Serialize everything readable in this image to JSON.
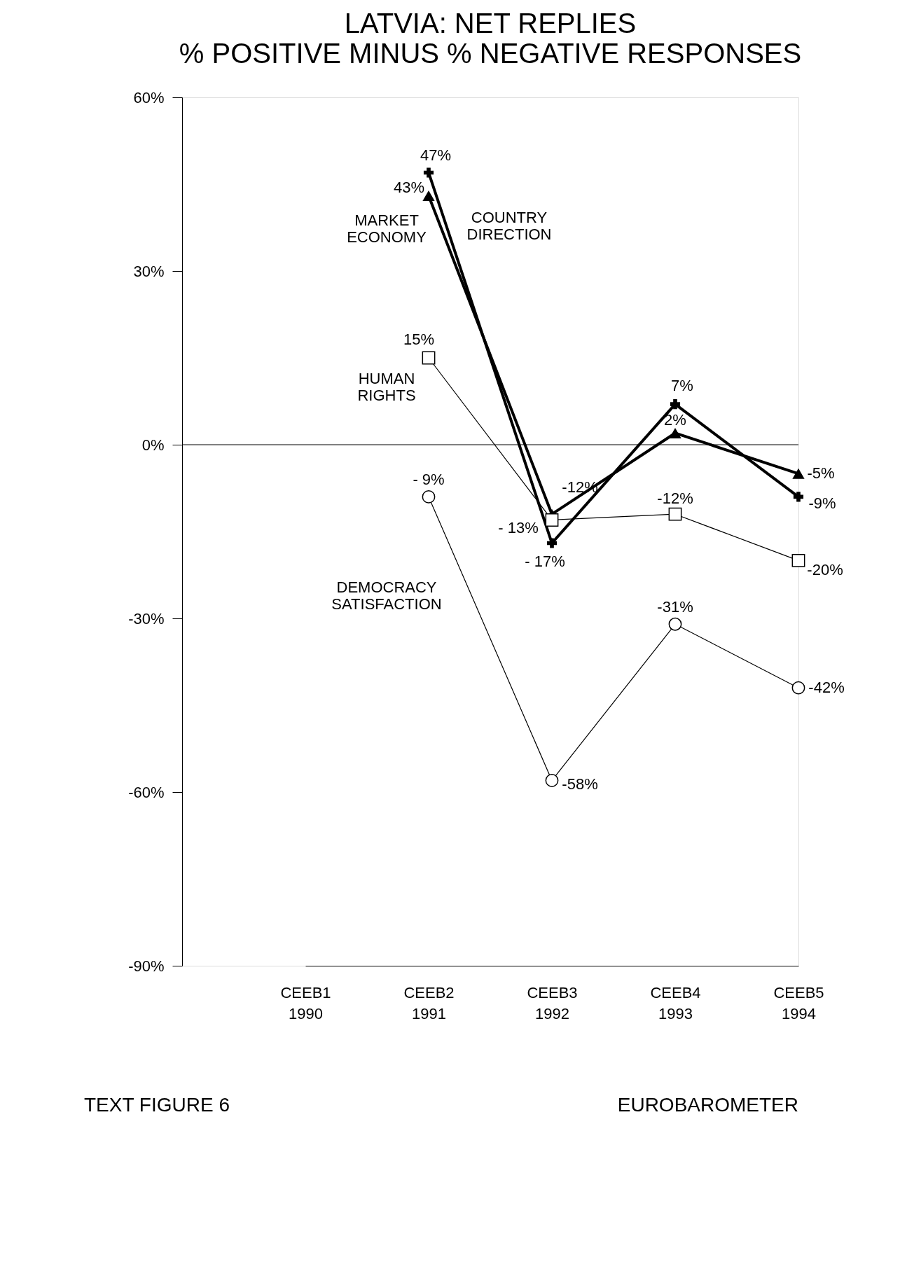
{
  "chart_data": {
    "type": "line",
    "title": "LATVIA: NET REPLIES",
    "subtitle": "% POSITIVE MINUS % NEGATIVE RESPONSES",
    "categories": [
      "CEEB1\n1990",
      "CEEB2\n1991",
      "CEEB3\n1992",
      "CEEB4\n1993",
      "CEEB5\n1994"
    ],
    "series": [
      {
        "name": "MARKET\nECONOMY",
        "color": "#000000",
        "marker": "triangle",
        "values": [
          null,
          43,
          -12,
          2,
          -5
        ],
        "value_labels": [
          null,
          "43%",
          "-12%",
          "2%",
          "-5%"
        ]
      },
      {
        "name": "COUNTRY\nDIRECTION",
        "color": "#000000",
        "marker": "cross",
        "values": [
          null,
          47,
          -17,
          7,
          -9
        ],
        "value_labels": [
          null,
          "47%",
          "- 17%",
          "7%",
          "-9%"
        ]
      },
      {
        "name": "HUMAN\nRIGHTS",
        "color": "#000000",
        "marker": "square",
        "values": [
          null,
          15,
          -13,
          -12,
          -20
        ],
        "value_labels": [
          null,
          "15%",
          "- 13%",
          "-12%",
          "-20%"
        ]
      },
      {
        "name": "DEMOCRACY\nSATISFACTION",
        "color": "#000000",
        "marker": "circle",
        "values": [
          null,
          -9,
          -58,
          -31,
          -42
        ],
        "value_labels": [
          null,
          "- 9%",
          "-58%",
          "-31%",
          "-42%"
        ]
      }
    ],
    "ylim": [
      -90,
      60
    ],
    "yticks": [
      {
        "value": -90,
        "label": "-90%"
      },
      {
        "value": -60,
        "label": "-60%"
      },
      {
        "value": -30,
        "label": "-30%"
      },
      {
        "value": 0,
        "label": "0%"
      },
      {
        "value": 30,
        "label": "30%"
      },
      {
        "value": 60,
        "label": "60%"
      }
    ],
    "ref_lines": [
      {
        "axis": "y",
        "value": 0,
        "label": null
      }
    ],
    "grid": false,
    "legend": false,
    "line_style": "solid",
    "annotations": [
      "TEXT FIGURE 6",
      "EUROBAROMETER"
    ]
  }
}
